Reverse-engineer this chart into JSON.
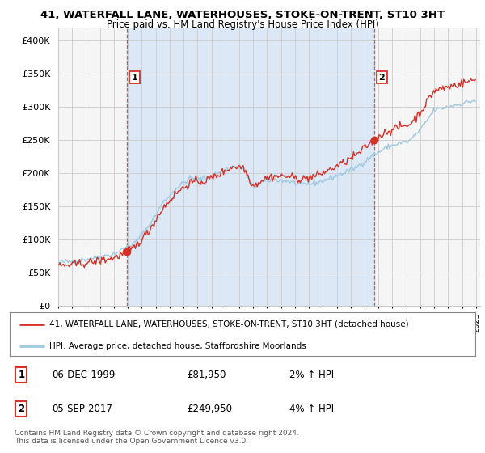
{
  "title_line1": "41, WATERFALL LANE, WATERHOUSES, STOKE-ON-TRENT, ST10 3HT",
  "title_line2": "Price paid vs. HM Land Registry's House Price Index (HPI)",
  "ylim": [
    0,
    420000
  ],
  "yticks": [
    0,
    50000,
    100000,
    150000,
    200000,
    250000,
    300000,
    350000,
    400000
  ],
  "ytick_labels": [
    "£0",
    "£50K",
    "£100K",
    "£150K",
    "£200K",
    "£250K",
    "£300K",
    "£350K",
    "£400K"
  ],
  "sale1_price": 81950,
  "sale2_price": 249950,
  "sale1_year": 1999.96,
  "sale2_year": 2017.67,
  "legend_line1": "41, WATERFALL LANE, WATERHOUSES, STOKE-ON-TRENT, ST10 3HT (detached house)",
  "legend_line2": "HPI: Average price, detached house, Staffordshire Moorlands",
  "footer": "Contains HM Land Registry data © Crown copyright and database right 2024.\nThis data is licensed under the Open Government Licence v3.0.",
  "hpi_color": "#9ecae1",
  "price_color": "#d73027",
  "background_color": "#ffffff",
  "chart_bg_color": "#e8f0f8",
  "chart_bg_before_color": "#f0f0f0",
  "grid_color": "#cccccc",
  "vline_color": "#d73027",
  "start_year": 1995,
  "end_year": 2025
}
